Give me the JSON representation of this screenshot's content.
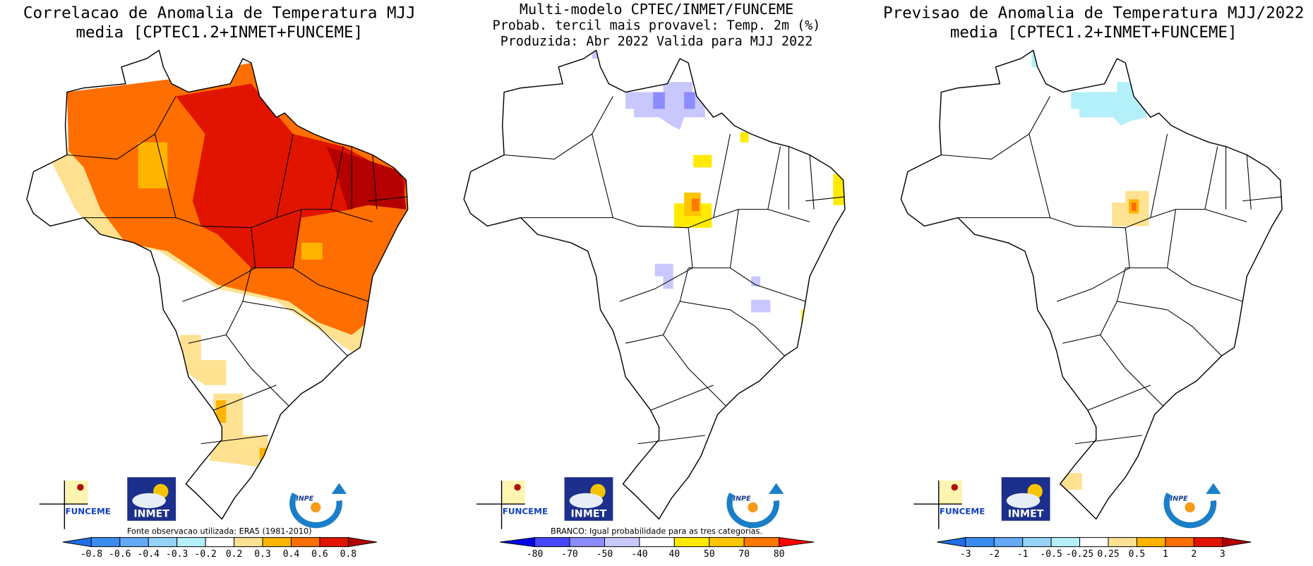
{
  "panels": [
    {
      "title": [
        "Correlacao de Anomalia de Temperatura MJJ",
        "media [CPTEC1.2+INMET+FUNCEME]"
      ],
      "note": "Fonte observacao utilizada: ERA5 (1981-2010)",
      "logos": {
        "funceme": "FUNCEME",
        "inmet": "INMET",
        "inpe": "INPE"
      },
      "colorbar": {
        "ticks": [
          "-0.8",
          "-0.6",
          "-0.4",
          "-0.3",
          "-0.2",
          "0.2",
          "0.3",
          "0.4",
          "0.6",
          "0.8"
        ],
        "colors": [
          "#1e6ee6",
          "#3c8cf0",
          "#64aaf5",
          "#96d2fa",
          "#b4f0fa",
          "#ffffff",
          "#fee191",
          "#ffb400",
          "#ff6e00",
          "#e01400",
          "#b40000"
        ]
      }
    },
    {
      "title": [
        "Multi-modelo CPTEC/INMET/FUNCEME",
        "Probab. tercil mais provavel: Temp. 2m (%)",
        "Produzida: Abr 2022  Valida para MJJ 2022"
      ],
      "note": "BRANCO: Igual probabilidade para as tres categorias.",
      "logos": {
        "funceme": "FUNCEME",
        "inmet": "INMET",
        "inpe": "INPE"
      },
      "colorbar": {
        "ticks": [
          "-80",
          "-70",
          "-50",
          "-40",
          "40",
          "50",
          "70",
          "80"
        ],
        "colors": [
          "#0000e6",
          "#4646ff",
          "#8c8cff",
          "#c8c8ff",
          "#ffffff",
          "#ffea00",
          "#ffc400",
          "#ff7800",
          "#ff0000"
        ]
      }
    },
    {
      "title": [
        "Previsao de Anomalia de Temperatura MJJ/2022",
        "media [CPTEC1.2+INMET+FUNCEME]"
      ],
      "logos": {
        "funceme": "FUNCEME",
        "inmet": "INMET",
        "inpe": "INPE"
      },
      "colorbar": {
        "ticks": [
          "-3",
          "-2",
          "-1",
          "-0.5",
          "-0.25",
          "0.25",
          "0.5",
          "1",
          "2",
          "3"
        ],
        "colors": [
          "#1e6ee6",
          "#3c8cf0",
          "#64aaf5",
          "#96d2fa",
          "#b4f0fa",
          "#ffffff",
          "#fee191",
          "#ffb400",
          "#ff6e00",
          "#e01400",
          "#b40000"
        ]
      }
    }
  ]
}
